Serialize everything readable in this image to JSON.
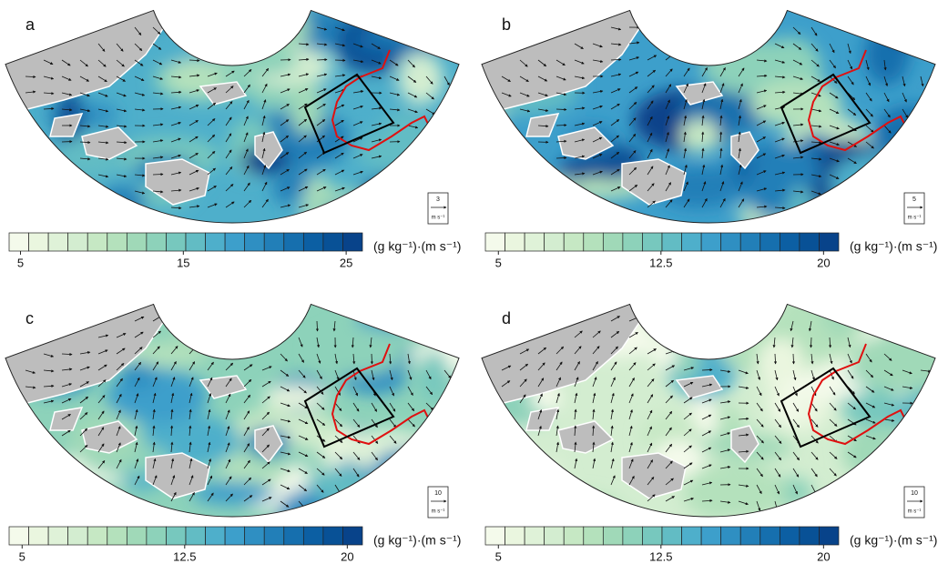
{
  "colorbar_colors": [
    "#f4faeb",
    "#eaf6df",
    "#dff2d8",
    "#d3edd0",
    "#c6e8c4",
    "#b4e1bc",
    "#a0d9b8",
    "#8dd2ba",
    "#77c8be",
    "#62bcc4",
    "#4eafcb",
    "#3d9fcb",
    "#2f8fc2",
    "#227fb8",
    "#166fae",
    "#0c5fa3",
    "#085196",
    "#08438a"
  ],
  "panels": [
    {
      "label": "a",
      "colorbar": {
        "lim": [
          4.3,
          26
        ],
        "ticks": [
          5,
          15,
          25
        ]
      },
      "unit": "(g kg⁻¹)·(m s⁻¹)",
      "ref_vector": {
        "value": 3,
        "unit": "m s⁻¹"
      }
    },
    {
      "label": "b",
      "colorbar": {
        "lim": [
          4.4,
          20.7
        ],
        "ticks": [
          5,
          12.5,
          20
        ]
      },
      "unit": "(g kg⁻¹)·(m s⁻¹)",
      "ref_vector": {
        "value": 5,
        "unit": "m s⁻¹"
      }
    },
    {
      "label": "c",
      "colorbar": {
        "lim": [
          4.4,
          20.7
        ],
        "ticks": [
          5,
          12.5,
          20
        ]
      },
      "unit": "(g kg⁻¹)·(m s⁻¹)",
      "ref_vector": {
        "value": 10,
        "unit": "m s⁻¹"
      }
    },
    {
      "label": "d",
      "colorbar": {
        "lim": [
          4.4,
          20.7
        ],
        "ticks": [
          5,
          12.5,
          20
        ]
      },
      "unit": "(g kg⁻¹)·(m s⁻¹)",
      "ref_vector": {
        "value": 10,
        "unit": "m s⁻¹"
      }
    }
  ]
}
